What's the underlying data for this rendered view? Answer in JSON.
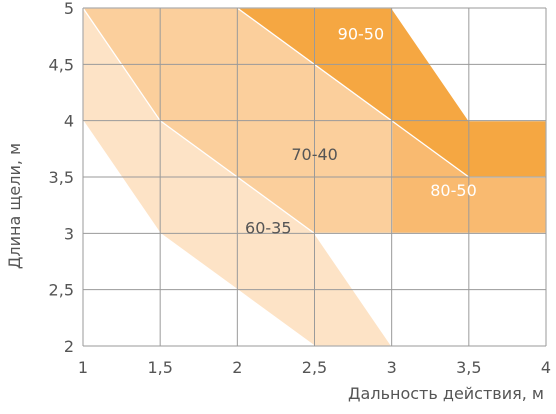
{
  "chart_data": {
    "type": "area",
    "xlabel": "Дальность действия, м",
    "ylabel": "Длина щели, м",
    "xlim": [
      1,
      4
    ],
    "ylim": [
      2,
      5
    ],
    "x_ticks": [
      1,
      1.5,
      2,
      2.5,
      3,
      3.5,
      4
    ],
    "y_ticks": [
      2,
      2.5,
      3,
      3.5,
      4,
      4.5,
      5
    ],
    "x_tick_labels": [
      "1",
      "1,5",
      "2",
      "2,5",
      "3",
      "3,5",
      "4"
    ],
    "y_tick_labels": [
      "2",
      "2,5",
      "3",
      "3,5",
      "4",
      "4,5",
      "5"
    ],
    "grid": true,
    "regions": [
      {
        "name": "60-35",
        "color": "#fde3c6",
        "polygon": [
          [
            1,
            4
          ],
          [
            1.5,
            3
          ],
          [
            2,
            2.5
          ],
          [
            2.5,
            2
          ],
          [
            3,
            2
          ],
          [
            2.5,
            3
          ],
          [
            1.5,
            4
          ],
          [
            1,
            5
          ]
        ],
        "label_at": [
          2.05,
          3.0
        ]
      },
      {
        "name": "70-40",
        "color": "#fbcf9c",
        "polygon": [
          [
            1,
            5
          ],
          [
            2,
            5
          ],
          [
            2.5,
            4.5
          ],
          [
            3,
            4
          ],
          [
            3,
            3
          ],
          [
            2.5,
            3
          ],
          [
            1.5,
            4
          ]
        ],
        "label_at": [
          2.35,
          3.65
        ]
      },
      {
        "name": "80-50",
        "color": "#f9ba70",
        "polygon": [
          [
            2.5,
            4.5
          ],
          [
            3,
            4
          ],
          [
            3.5,
            3.5
          ],
          [
            4,
            3.5
          ],
          [
            4,
            3
          ],
          [
            3,
            3
          ],
          [
            3,
            4
          ],
          [
            2.5,
            4.5
          ]
        ],
        "label_at": [
          3.25,
          3.33
        ]
      },
      {
        "name": "90-50",
        "color": "#f5a742",
        "polygon": [
          [
            2,
            5
          ],
          [
            3,
            5
          ],
          [
            3.5,
            4
          ],
          [
            4,
            4
          ],
          [
            4,
            3.5
          ],
          [
            3.5,
            3.5
          ],
          [
            3,
            4
          ],
          [
            2.5,
            4.5
          ]
        ],
        "label_at": [
          2.65,
          4.72
        ]
      }
    ]
  }
}
